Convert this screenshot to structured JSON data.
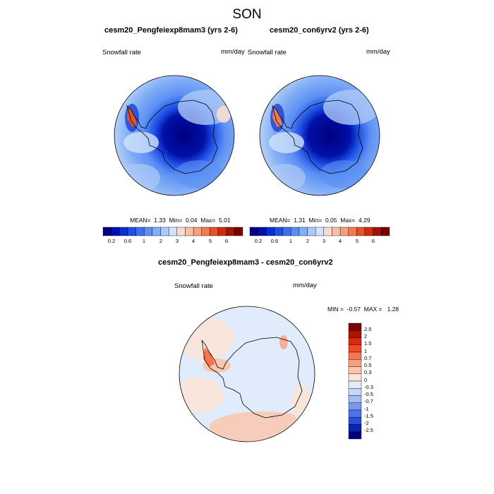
{
  "figure_title": "SON",
  "panels": [
    {
      "title": "cesm20_Pengfeiexp8mam3 (yrs 2-6)",
      "variable_label": "Snowfall rate",
      "units": "mm/day",
      "stats": {
        "mean_label": "MEAN=",
        "mean": "1.33",
        "min_label": "Min=",
        "min": "0.04",
        "max_label": "Max=",
        "max": "5.01"
      }
    },
    {
      "title": "cesm20_con6yrv2 (yrs 2-6)",
      "variable_label": "Snowfall rate",
      "units": "mm/day",
      "stats": {
        "mean_label": "MEAN=",
        "mean": "1.31",
        "min_label": "Min=",
        "min": "0.05",
        "max_label": "Max=",
        "max": "4.29"
      }
    },
    {
      "title": "cesm20_Pengfeiexp8mam3 - cesm20_con6yrv2",
      "variable_label": "Snowfall rate",
      "units": "mm/day",
      "stats": {
        "min_label": "MIN =",
        "min": "-0.57",
        "max_label": "MAX =",
        "max": "1.28"
      }
    }
  ],
  "colorbar_abs": {
    "tick_labels": [
      "0.2",
      "0.6",
      "1",
      "2",
      "3",
      "4",
      "5",
      "6"
    ],
    "colors": [
      "#00007f",
      "#0010a8",
      "#0832d0",
      "#1e50e6",
      "#3a6ff0",
      "#5c8ff4",
      "#82aef6",
      "#acc9f8",
      "#d2e3fb",
      "#f7dcd0",
      "#f8c0a6",
      "#f59f7e",
      "#ef7a54",
      "#e2522f",
      "#cc2e10",
      "#a31206",
      "#7a0000"
    ]
  },
  "colorbar_diff": {
    "tick_labels": [
      "2.5",
      "2",
      "1.5",
      "1",
      "0.7",
      "0.5",
      "0.3",
      "0",
      "-0.3",
      "-0.5",
      "-0.7",
      "-1",
      "-1.5",
      "-2",
      "-2.5"
    ],
    "colors": [
      "#7a0000",
      "#b01000",
      "#d92a0c",
      "#ef4a25",
      "#f7744f",
      "#f8a07e",
      "#f9c7ae",
      "#fbe5d8",
      "#e0ecfb",
      "#c3d8f8",
      "#a0bef4",
      "#7898ee",
      "#4f73e6",
      "#2a4cda",
      "#0c22b4",
      "#00007f"
    ]
  },
  "map_colors": {
    "coast": "#000000",
    "ocean_far": "#c8dcf8",
    "ocean_mid": "#6e98ee",
    "ice_edge": "#2040d0",
    "interior": "#00007f",
    "peninsula": "#e2522f",
    "diff_background": "#e0ecfb",
    "diff_positive": "#f9c7ae"
  }
}
